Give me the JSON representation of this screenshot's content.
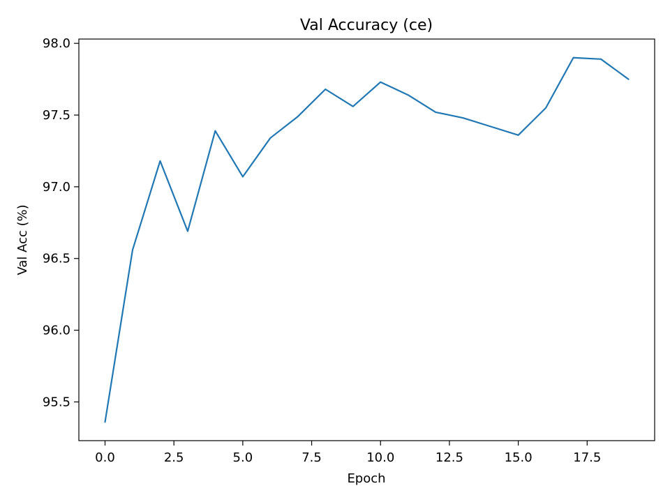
{
  "chart_data": {
    "type": "line",
    "title": "Val Accuracy (ce)",
    "xlabel": "Epoch",
    "ylabel": "Val Acc (%)",
    "xlim": [
      -0.95,
      19.95
    ],
    "ylim": [
      95.23,
      98.03
    ],
    "xticks": [
      0,
      2.5,
      5,
      7.5,
      10,
      12.5,
      15,
      17.5
    ],
    "xtick_labels": [
      "0.0",
      "2.5",
      "5.0",
      "7.5",
      "10.0",
      "12.5",
      "15.0",
      "17.5"
    ],
    "yticks": [
      95.5,
      96.0,
      96.5,
      97.0,
      97.5,
      98.0
    ],
    "ytick_labels": [
      "95.5",
      "96.0",
      "96.5",
      "97.0",
      "97.5",
      "98.0"
    ],
    "grid": false,
    "series": [
      {
        "color": "#1f77b4",
        "x": [
          0,
          1,
          2,
          3,
          4,
          5,
          6,
          7,
          8,
          9,
          10,
          11,
          12,
          13,
          14,
          15,
          16,
          17,
          18,
          19
        ],
        "y": [
          95.36,
          96.56,
          97.18,
          96.69,
          97.39,
          97.07,
          97.34,
          97.49,
          97.68,
          97.56,
          97.73,
          97.64,
          97.52,
          97.48,
          97.42,
          97.36,
          97.55,
          97.9,
          97.89,
          97.75
        ]
      }
    ]
  }
}
